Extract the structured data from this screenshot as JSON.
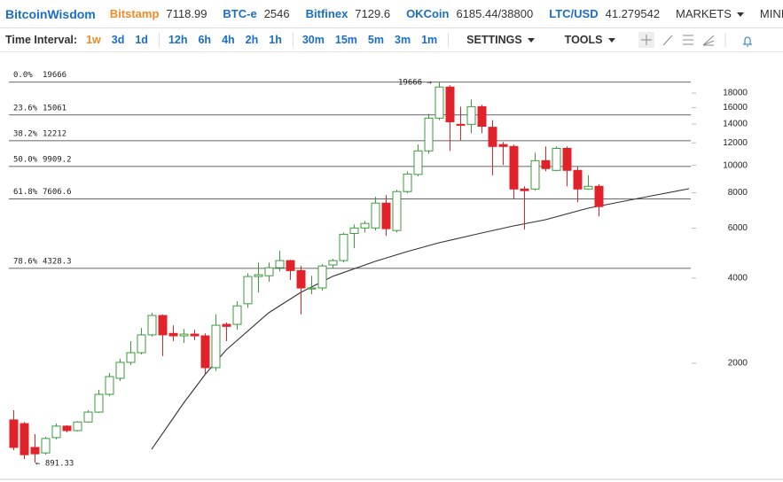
{
  "header": {
    "logo": "BitcoinWisdom",
    "tickers": [
      {
        "name": "Bitstamp",
        "price": 7118.99
      },
      {
        "name": "BTC-e",
        "price": 2546
      },
      {
        "name": "Bitfinex",
        "price": 7129.6
      },
      {
        "name": "OKCoin",
        "price": "6185.44/38800"
      },
      {
        "name": "LTC/USD",
        "price": 41.279542
      }
    ],
    "menus": [
      "MARKETS",
      "MINING"
    ]
  },
  "toolbar": {
    "label": "Time Interval:",
    "intervals": [
      [
        "1w",
        "3d",
        "1d"
      ],
      [
        "12h",
        "6h",
        "4h",
        "2h",
        "1h"
      ],
      [
        "30m",
        "15m",
        "5m",
        "3m",
        "1m"
      ]
    ],
    "menus": [
      "SETTINGS",
      "TOOLS"
    ]
  },
  "chart_data": {
    "type": "candlestick",
    "log_scale": true,
    "xlim": [
      -1.25,
      63.75
    ],
    "ylim": [
      784,
      25260
    ],
    "yticks": [
      2000,
      4000,
      6000,
      8000,
      10000,
      12000,
      14000,
      16000,
      18000
    ],
    "up_color": "#3c9a3c",
    "down_color": "#e0232b",
    "open": [
      1262,
      1225,
      1009,
      965,
      1093,
      1200,
      1157,
      1241,
      1345,
      1554,
      1770,
      2015,
      2180,
      2520,
      2950,
      2550,
      2500,
      2535,
      2500,
      1930,
      2745,
      2745,
      3245,
      4050,
      4075,
      4350,
      4610,
      4250,
      3660,
      3690,
      4450,
      4610,
      5750,
      6010,
      6010,
      7355,
      5886,
      8080,
      9290,
      11248,
      14680,
      18900,
      13958,
      13958,
      16118,
      13630,
      11840,
      11660,
      8250,
      8250,
      10390,
      9600,
      11480,
      9600,
      8250,
      8434
    ],
    "high": [
      1365,
      1241,
      1124,
      1100,
      1225,
      1208,
      1250,
      1365,
      1611,
      1848,
      2075,
      2395,
      2667,
      3015,
      2975,
      2725,
      2645,
      2625,
      2550,
      2975,
      2785,
      3310,
      4160,
      4540,
      4540,
      4990,
      4640,
      4414,
      4075,
      4480,
      4675,
      5795,
      6180,
      6370,
      7740,
      7849,
      8200,
      9535,
      11840,
      15200,
      19666,
      19200,
      16118,
      17080,
      16360,
      14440,
      12087,
      11840,
      8434,
      11080,
      11660,
      11660,
      11660,
      9890,
      9220,
      8570
    ],
    "low": [
      986,
      919,
      891.33,
      951,
      1077,
      1140,
      1148,
      1233,
      1335,
      1530,
      1731,
      1971,
      2149,
      2482,
      2120,
      2395,
      2360,
      2415,
      1835,
      1880,
      2395,
      2625,
      3140,
      3557,
      3880,
      4225,
      3940,
      2975,
      3505,
      3610,
      4320,
      4540,
      5097,
      5795,
      5886,
      5640,
      5795,
      7960,
      9150,
      10990,
      14440,
      11248,
      12270,
      12989,
      12989,
      9220,
      10025,
      7620,
      5930,
      8140,
      9535,
      9535,
      8434,
      7410,
      8200,
      6600
    ],
    "close": [
      1009,
      951,
      958,
      1085,
      1200,
      1157,
      1241,
      1345,
      1554,
      1795,
      2015,
      2180,
      2520,
      2950,
      2520,
      2500,
      2535,
      2500,
      1930,
      2725,
      2700,
      3190,
      4050,
      4107,
      4350,
      4610,
      4250,
      3690,
      3690,
      4414,
      4610,
      5710,
      6010,
      6235,
      7355,
      5975,
      8080,
      9320,
      11248,
      14680,
      18900,
      14250,
      13850,
      16118,
      13740,
      11660,
      11660,
      8250,
      8140,
      10390,
      9740,
      11480,
      9600,
      8250,
      8434,
      7150
    ],
    "fib_levels": [
      {
        "label": "0.0%",
        "value": 19666
      },
      {
        "label": "23.6%",
        "value": 15061
      },
      {
        "label": "38.2%",
        "value": 12212
      },
      {
        "label": "50.0%",
        "value": 9909.2
      },
      {
        "label": "61.8%",
        "value": 7606.6
      },
      {
        "label": "78.6%",
        "value": 4328.3
      }
    ],
    "curve": {
      "color": "#333333",
      "x": [
        13,
        16,
        18,
        20,
        24,
        27,
        30,
        34,
        37,
        40,
        44,
        47,
        50,
        54,
        57,
        60,
        63.5
      ],
      "values": [
        994,
        1446,
        1822,
        2228,
        3016,
        3557,
        4053,
        4580,
        4958,
        5330,
        5768,
        6110,
        6426,
        7056,
        7422,
        7806,
        8268
      ]
    },
    "annotations": [
      "19666 →",
      "← 891.33"
    ]
  }
}
